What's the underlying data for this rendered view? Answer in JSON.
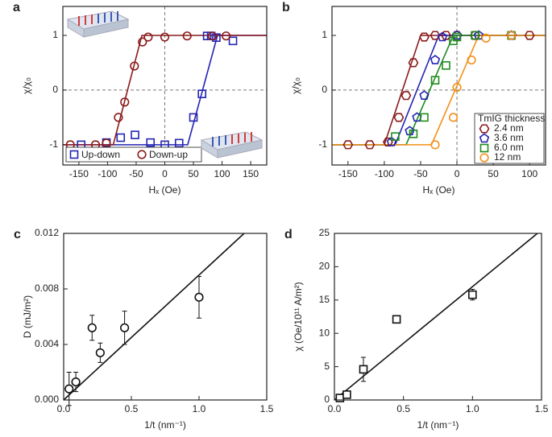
{
  "chart_data": [
    {
      "type": "scatter",
      "label": "a",
      "xlabel": "Hₓ (Oe)",
      "ylabel": "χ/χ₀",
      "xlim": [
        -178,
        178
      ],
      "ylim": [
        -1.37,
        1.53
      ],
      "xticks": [
        -150,
        -100,
        -50,
        0,
        50,
        100,
        150
      ],
      "yticks": [
        -1,
        0,
        1
      ],
      "zero_lines": true,
      "legend": "lower left",
      "series": [
        {
          "name": "Up-down",
          "color": "#2323b4",
          "marker": "square",
          "x": [
            -146,
            -102,
            -77,
            -52,
            -25,
            0,
            25,
            50,
            65,
            74,
            81,
            90,
            119
          ],
          "values": [
            -1,
            -0.96,
            -0.87,
            -0.82,
            -0.96,
            -1,
            -0.97,
            -0.5,
            -0.07,
            0.99,
            0.99,
            0.96,
            0.9
          ]
        },
        {
          "name": "Down-up",
          "color": "#8b1a1a",
          "marker": "circle",
          "x": [
            -165,
            -121,
            -102,
            -81,
            -70,
            -53,
            -39,
            -29,
            0,
            39,
            83,
            107
          ],
          "values": [
            -1,
            -1,
            -0.97,
            -0.5,
            -0.22,
            0.44,
            0.88,
            0.97,
            0.97,
            0.99,
            0.99,
            0.99
          ]
        }
      ],
      "lines": [
        {
          "color": "#2323b4",
          "x": [
            -178,
            40,
            92,
            178
          ],
          "y": [
            -1,
            -1,
            1,
            1
          ]
        },
        {
          "color": "#8b1a1a",
          "x": [
            -178,
            -90,
            -40,
            178
          ],
          "y": [
            -1,
            -1,
            1,
            1
          ]
        }
      ]
    },
    {
      "type": "scatter",
      "label": "b",
      "xlabel": "Hₓ (Oe)",
      "ylabel": "χ/χ₀",
      "xlim": [
        -172,
        122
      ],
      "ylim": [
        -1.37,
        1.53
      ],
      "xticks": [
        -150,
        -100,
        -50,
        0,
        50,
        100
      ],
      "yticks": [
        -1,
        0,
        1
      ],
      "zero_lines": true,
      "legend": "lower right",
      "legend_title": "TmIG thickness",
      "series": [
        {
          "name": "2.4 nm",
          "color": "#8b1a1a",
          "marker": "hexagon",
          "x": [
            -150,
            -120,
            -95,
            -80,
            -70,
            -60,
            -45,
            -30,
            -15,
            0,
            25,
            75,
            100
          ],
          "values": [
            -1,
            -1,
            -0.95,
            -0.5,
            -0.1,
            0.5,
            0.97,
            1,
            1,
            1,
            1,
            1,
            1
          ]
        },
        {
          "name": "3.6 nm",
          "color": "#2323b4",
          "marker": "pentagon",
          "x": [
            -90,
            -65,
            -55,
            -45,
            -30,
            -20,
            0,
            30,
            75
          ],
          "values": [
            -0.95,
            -0.75,
            -0.5,
            -0.1,
            0.55,
            0.97,
            1,
            1,
            1
          ]
        },
        {
          "name": "6.0 nm",
          "color": "#1f8c1f",
          "marker": "square",
          "x": [
            -85,
            -60,
            -45,
            -30,
            -15,
            -5,
            0,
            25,
            75
          ],
          "values": [
            -0.85,
            -0.8,
            -0.5,
            0.18,
            0.45,
            0.9,
            0.97,
            1,
            1
          ]
        },
        {
          "name": "12 nm",
          "color": "#f39019",
          "marker": "circle",
          "x": [
            -30,
            -5,
            0,
            20,
            40,
            75
          ],
          "values": [
            -1,
            -0.5,
            0.05,
            0.55,
            0.95,
            1
          ]
        }
      ],
      "lines": [
        {
          "color": "#8b1a1a",
          "x": [
            -172,
            -100,
            -50,
            122
          ],
          "y": [
            -1,
            -1,
            1,
            1
          ]
        },
        {
          "color": "#2323b4",
          "x": [
            -172,
            -85,
            -25,
            122
          ],
          "y": [
            -1,
            -1,
            1,
            1
          ]
        },
        {
          "color": "#1f8c1f",
          "x": [
            -172,
            -70,
            -5,
            122
          ],
          "y": [
            -1,
            -1,
            1,
            1
          ]
        },
        {
          "color": "#f39019",
          "x": [
            -172,
            -35,
            30,
            122
          ],
          "y": [
            -1,
            -1,
            1,
            1
          ]
        }
      ]
    },
    {
      "type": "scatter",
      "label": "c",
      "xlabel": "1/t (nm⁻¹)",
      "ylabel": "D (mJ/m²)",
      "xlim": [
        0,
        1.5
      ],
      "ylim": [
        0,
        0.012
      ],
      "xticks": [
        {
          "value": 0,
          "label": "0.0"
        },
        {
          "value": 0.5,
          "label": "0.5"
        },
        {
          "value": 1,
          "label": "1.0"
        },
        {
          "value": 1.5,
          "label": "1.5"
        }
      ],
      "yticks": [
        {
          "value": 0,
          "label": "0.000"
        },
        {
          "value": 0.004,
          "label": "0.004"
        },
        {
          "value": 0.008,
          "label": "0.008"
        },
        {
          "value": 0.012,
          "label": "0.012"
        }
      ],
      "series": [
        {
          "color": "#111111",
          "marker": "circle",
          "x": [
            0.04,
            0.09,
            0.21,
            0.27,
            0.45,
            1.0
          ],
          "values": [
            0.0008,
            0.0013,
            0.0052,
            0.0034,
            0.0052,
            0.0074
          ],
          "errors": [
            0.0012,
            0.0007,
            0.0009,
            0.0007,
            0.0012,
            0.0015
          ]
        }
      ],
      "lines": [
        {
          "color": "#111111",
          "x": [
            0,
            1.333
          ],
          "y": [
            0,
            0.012
          ]
        }
      ]
    },
    {
      "type": "scatter",
      "label": "d",
      "xlabel": "1/t (nm⁻¹)",
      "ylabel": "χ (Oe/10¹¹ A/m²)",
      "xlim": [
        0,
        1.5
      ],
      "ylim": [
        0,
        25
      ],
      "xticks": [
        {
          "value": 0,
          "label": "0.0"
        },
        {
          "value": 0.5,
          "label": "0.5"
        },
        {
          "value": 1,
          "label": "1.0"
        },
        {
          "value": 1.5,
          "label": "1.5"
        }
      ],
      "yticks": [
        0,
        5,
        10,
        15,
        20,
        25
      ],
      "series": [
        {
          "color": "#111111",
          "marker": "square",
          "x": [
            0.04,
            0.09,
            0.21,
            0.45,
            1.0
          ],
          "values": [
            0.3,
            0.8,
            4.6,
            12.1,
            15.8
          ],
          "errors": [
            0.3,
            0.3,
            1.8,
            0.4,
            0.8
          ]
        }
      ],
      "lines": [
        {
          "color": "#111111",
          "x": [
            0,
            1.47
          ],
          "y": [
            0,
            25
          ]
        }
      ]
    }
  ]
}
